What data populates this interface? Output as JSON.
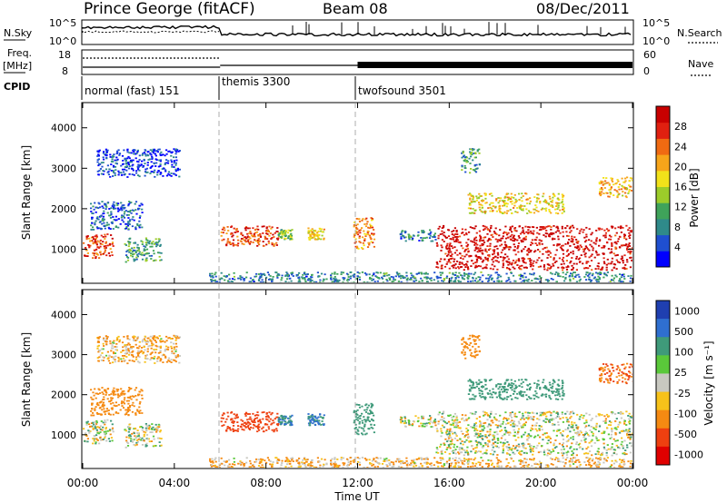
{
  "header": {
    "station": "Prince George (fitACF)",
    "beam": "Beam 08",
    "date": "08/Dec/2011"
  },
  "top_panels": {
    "nsky_label": "N.Sky",
    "nsky_ticks": [
      "10^5",
      "10^0"
    ],
    "nsearch_label": "N.Search",
    "nsearch_ticks": [
      "10^5",
      "10^0"
    ],
    "freq_label_1": "Freq.",
    "freq_label_2": "[MHz]",
    "freq_ticks": [
      "18",
      "8"
    ],
    "nave_label": "Nave",
    "nave_ticks": [
      "60",
      "0"
    ],
    "cpid_label": "CPID",
    "cpid_segments": [
      {
        "name": "normal (fast) 151",
        "start_hour": 0
      },
      {
        "name": "themis 3300",
        "start_hour": 6
      },
      {
        "name": "twofsound 3501",
        "start_hour": 12
      }
    ]
  },
  "time_axis": {
    "label": "Time UT",
    "ticks": [
      "00:00",
      "04:00",
      "08:00",
      "12:00",
      "16:00",
      "20:00",
      "00:00"
    ]
  },
  "chart_data": [
    {
      "type": "heatmap",
      "title": "Power",
      "xlabel": "Time UT",
      "ylabel": "Slant Range [km]",
      "xlim_hours": [
        0,
        24
      ],
      "ylim": [
        180,
        4600
      ],
      "yticks": [
        "1000",
        "2000",
        "3000",
        "4000"
      ],
      "colorbar": {
        "label": "Power [dB]",
        "ticks": [
          "4",
          "8",
          "12",
          "16",
          "20",
          "24",
          "28"
        ],
        "colors": [
          "#0000ff",
          "#1f4fd0",
          "#2f8a8a",
          "#3fa35a",
          "#9ccc2a",
          "#f2e21a",
          "#f7a51a",
          "#f06a12",
          "#e02010",
          "#c80000"
        ]
      },
      "echo_regions": [
        {
          "t0": 0.0,
          "t1": 1.3,
          "r0": 800,
          "r1": 1400,
          "dB": 26
        },
        {
          "t0": 0.3,
          "t1": 2.6,
          "r0": 1500,
          "r1": 2200,
          "dB": 6
        },
        {
          "t0": 0.6,
          "t1": 4.2,
          "r0": 2800,
          "r1": 3500,
          "dB": 4
        },
        {
          "t0": 1.8,
          "t1": 3.4,
          "r0": 700,
          "r1": 1300,
          "dB": 10
        },
        {
          "t0": 6.0,
          "t1": 8.5,
          "r0": 1100,
          "r1": 1600,
          "dB": 26
        },
        {
          "t0": 8.5,
          "t1": 9.1,
          "r0": 1250,
          "r1": 1500,
          "dB": 14
        },
        {
          "t0": 9.8,
          "t1": 10.5,
          "r0": 1250,
          "r1": 1550,
          "dB": 18
        },
        {
          "t0": 11.8,
          "t1": 12.7,
          "r0": 1000,
          "r1": 1800,
          "dB": 22
        },
        {
          "t0": 13.8,
          "t1": 15.4,
          "r0": 1200,
          "r1": 1500,
          "dB": 8
        },
        {
          "t0": 15.4,
          "t1": 24.0,
          "r0": 500,
          "r1": 1600,
          "dB": 30
        },
        {
          "t0": 16.8,
          "t1": 21.0,
          "r0": 1900,
          "r1": 2400,
          "dB": 18
        },
        {
          "t0": 22.5,
          "t1": 24.0,
          "r0": 2300,
          "r1": 2800,
          "dB": 20
        },
        {
          "t0": 16.5,
          "t1": 17.3,
          "r0": 2900,
          "r1": 3500,
          "dB": 10
        },
        {
          "t0": 5.5,
          "t1": 24.0,
          "r0": 180,
          "r1": 450,
          "dB": 8
        }
      ]
    },
    {
      "type": "heatmap",
      "title": "Velocity",
      "xlabel": "Time UT",
      "ylabel": "Slant Range [km]",
      "xlim_hours": [
        0,
        24
      ],
      "ylim": [
        180,
        4600
      ],
      "yticks": [
        "1000",
        "2000",
        "3000",
        "4000"
      ],
      "colorbar": {
        "label": "Velocity [m s⁻¹]",
        "ticks": [
          "1000",
          "500",
          "100",
          "25",
          "-25",
          "-100",
          "-500",
          "-1000"
        ],
        "colors": [
          "#1f3fb0",
          "#2f6fd0",
          "#3f9a7a",
          "#5ac83a",
          "#c8c8c0",
          "#f7c21a",
          "#f58a12",
          "#ee4010",
          "#e00000"
        ]
      },
      "echo_regions": [
        {
          "t0": 0.0,
          "t1": 1.3,
          "r0": 800,
          "r1": 1400,
          "v": 0
        },
        {
          "t0": 0.3,
          "t1": 2.6,
          "r0": 1500,
          "r1": 2200,
          "v": -150
        },
        {
          "t0": 0.6,
          "t1": 4.2,
          "r0": 2800,
          "r1": 3500,
          "v": -60
        },
        {
          "t0": 1.8,
          "t1": 3.4,
          "r0": 700,
          "r1": 1300,
          "v": 0
        },
        {
          "t0": 6.0,
          "t1": 8.5,
          "r0": 1100,
          "r1": 1600,
          "v": -450
        },
        {
          "t0": 8.5,
          "t1": 9.1,
          "r0": 1250,
          "r1": 1500,
          "v": 300
        },
        {
          "t0": 9.8,
          "t1": 10.5,
          "r0": 1250,
          "r1": 1550,
          "v": 300
        },
        {
          "t0": 11.8,
          "t1": 12.7,
          "r0": 1000,
          "r1": 1800,
          "v": 150
        },
        {
          "t0": 13.8,
          "t1": 15.4,
          "r0": 1200,
          "r1": 1500,
          "v": 0
        },
        {
          "t0": 15.4,
          "t1": 24.0,
          "r0": 500,
          "r1": 1600,
          "v": 0
        },
        {
          "t0": 16.8,
          "t1": 21.0,
          "r0": 1900,
          "r1": 2400,
          "v": 200
        },
        {
          "t0": 22.5,
          "t1": 24.0,
          "r0": 2300,
          "r1": 2800,
          "v": -300
        },
        {
          "t0": 16.5,
          "t1": 17.3,
          "r0": 2900,
          "r1": 3500,
          "v": -150
        },
        {
          "t0": 5.5,
          "t1": 24.0,
          "r0": 180,
          "r1": 450,
          "v": -60
        }
      ]
    }
  ]
}
